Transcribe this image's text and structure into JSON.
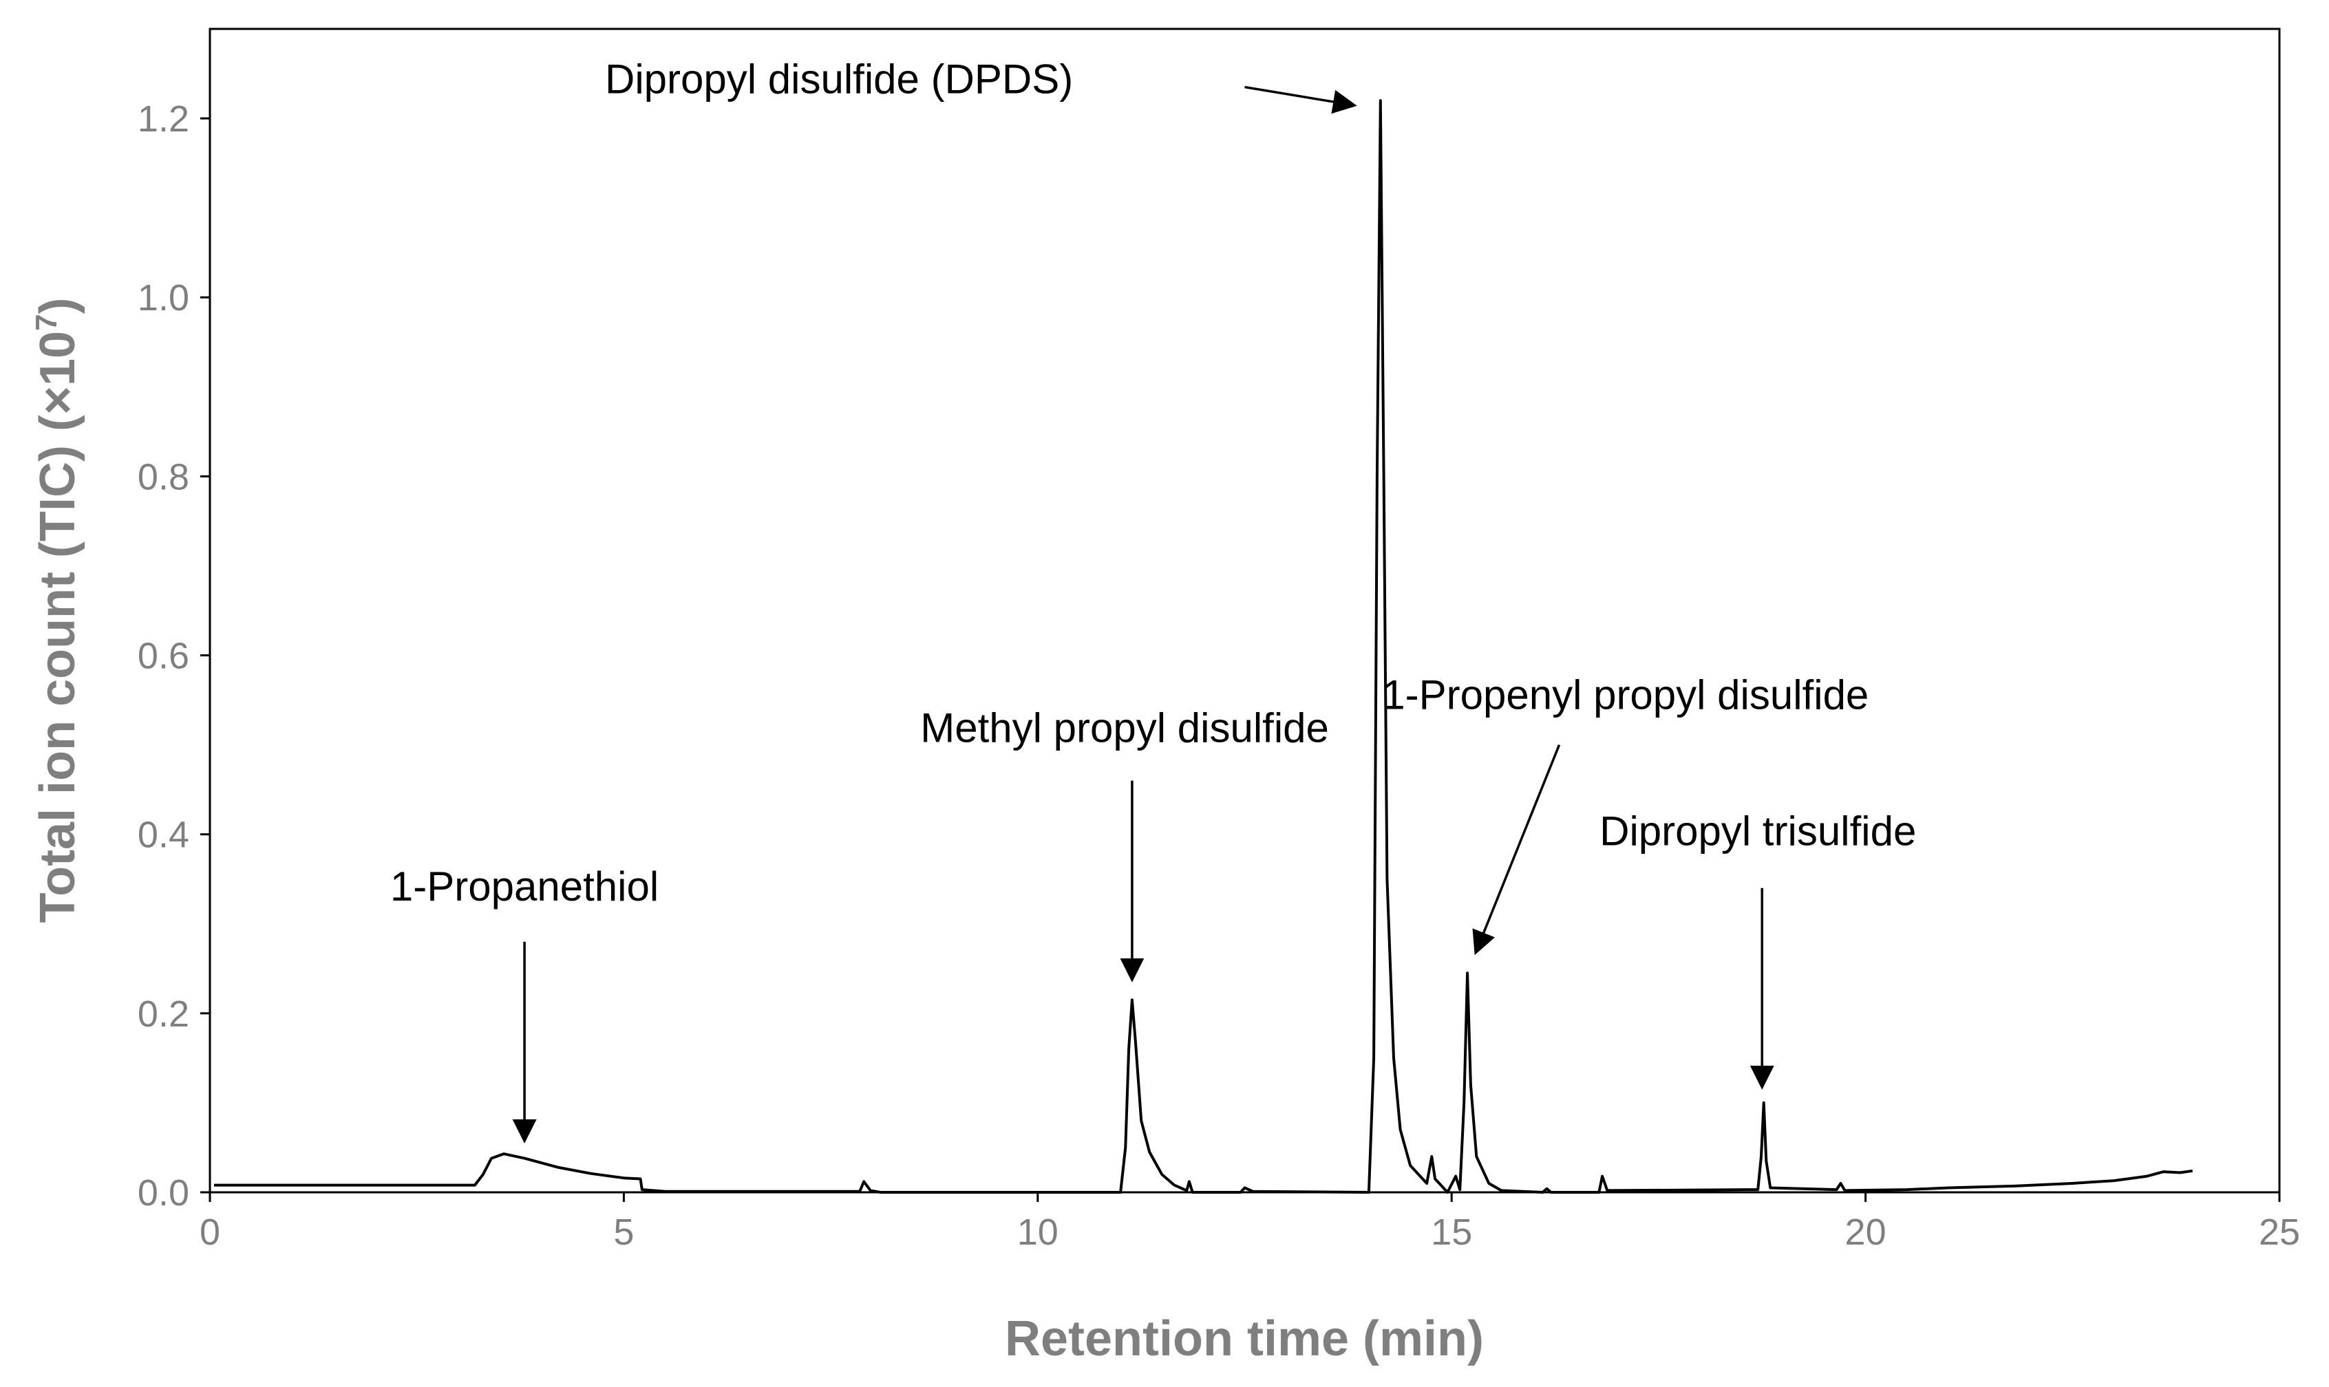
{
  "chart_data": {
    "type": "line",
    "title": "",
    "xlabel": "Retention time (min)",
    "ylabel_main": "Total ion count (TIC) (×10",
    "ylabel_sup": "7",
    "ylabel_end": ")",
    "xlim": [
      0,
      25
    ],
    "ylim": [
      0,
      1.3
    ],
    "x_ticks": [
      0,
      5,
      10,
      15,
      20,
      25
    ],
    "x_tick_labels": [
      "0",
      "5",
      "10",
      "15",
      "20",
      "25"
    ],
    "y_ticks": [
      0.0,
      0.2,
      0.4,
      0.6,
      0.8,
      1.0,
      1.2
    ],
    "y_tick_labels": [
      "0.0",
      "0.2",
      "0.4",
      "0.6",
      "0.8",
      "1.0",
      "1.2"
    ],
    "grid": false,
    "legend": "none",
    "series": [
      {
        "color": "#000000",
        "points": [
          [
            0.05,
            0.008
          ],
          [
            3.2,
            0.008
          ],
          [
            3.3,
            0.02
          ],
          [
            3.4,
            0.038
          ],
          [
            3.55,
            0.043
          ],
          [
            3.8,
            0.038
          ],
          [
            4.2,
            0.028
          ],
          [
            4.6,
            0.021
          ],
          [
            5.0,
            0.016
          ],
          [
            5.2,
            0.015
          ],
          [
            5.22,
            0.003
          ],
          [
            5.5,
            0.001
          ],
          [
            7.85,
            0.001
          ],
          [
            7.9,
            0.012
          ],
          [
            7.98,
            0.002
          ],
          [
            8.1,
            0.0
          ],
          [
            11.0,
            0.0
          ],
          [
            11.06,
            0.05
          ],
          [
            11.1,
            0.16
          ],
          [
            11.14,
            0.215
          ],
          [
            11.18,
            0.17
          ],
          [
            11.25,
            0.08
          ],
          [
            11.35,
            0.045
          ],
          [
            11.5,
            0.02
          ],
          [
            11.65,
            0.008
          ],
          [
            11.8,
            0.002
          ],
          [
            11.83,
            0.012
          ],
          [
            11.87,
            0.0
          ],
          [
            12.45,
            0.0
          ],
          [
            12.5,
            0.005
          ],
          [
            12.6,
            0.001
          ],
          [
            14.0,
            0.0
          ],
          [
            14.06,
            0.15
          ],
          [
            14.1,
            0.8
          ],
          [
            14.14,
            1.22
          ],
          [
            14.18,
            0.8
          ],
          [
            14.22,
            0.35
          ],
          [
            14.3,
            0.15
          ],
          [
            14.38,
            0.07
          ],
          [
            14.5,
            0.03
          ],
          [
            14.7,
            0.01
          ],
          [
            14.76,
            0.04
          ],
          [
            14.8,
            0.015
          ],
          [
            14.85,
            0.01
          ],
          [
            14.95,
            0.0
          ],
          [
            15.05,
            0.018
          ],
          [
            15.1,
            0.003
          ],
          [
            15.15,
            0.1
          ],
          [
            15.19,
            0.245
          ],
          [
            15.23,
            0.12
          ],
          [
            15.3,
            0.04
          ],
          [
            15.45,
            0.01
          ],
          [
            15.6,
            0.002
          ],
          [
            16.1,
            0.0
          ],
          [
            16.15,
            0.004
          ],
          [
            16.2,
            0.0
          ],
          [
            16.78,
            0.0
          ],
          [
            16.82,
            0.018
          ],
          [
            16.88,
            0.002
          ],
          [
            18.7,
            0.003
          ],
          [
            18.74,
            0.04
          ],
          [
            18.77,
            0.1
          ],
          [
            18.8,
            0.035
          ],
          [
            18.85,
            0.005
          ],
          [
            19.65,
            0.003
          ],
          [
            19.7,
            0.01
          ],
          [
            19.75,
            0.002
          ],
          [
            20.5,
            0.003
          ],
          [
            21.0,
            0.005
          ],
          [
            21.8,
            0.007
          ],
          [
            22.5,
            0.01
          ],
          [
            23.0,
            0.013
          ],
          [
            23.4,
            0.018
          ],
          [
            23.6,
            0.023
          ],
          [
            23.8,
            0.022
          ],
          [
            23.95,
            0.024
          ]
        ]
      }
    ],
    "annotations": [
      {
        "text": "1-Propanethiol",
        "label_x": 3.8,
        "label_y": 0.326,
        "arrow_from": [
          3.8,
          0.28
        ],
        "arrow_to": [
          3.8,
          0.06
        ]
      },
      {
        "text": "Methyl propyl disulfide",
        "label_x": 11.05,
        "label_y": 0.503,
        "arrow_from": [
          11.14,
          0.46
        ],
        "arrow_to": [
          11.14,
          0.24
        ]
      },
      {
        "text": "Dipropyl disulfide (DPDS)",
        "label_x": 7.6,
        "label_y": 1.228,
        "arrow_from": [
          12.5,
          1.235
        ],
        "arrow_to": [
          13.8,
          1.215
        ]
      },
      {
        "text": "1-Propenyl propyl disulfide",
        "label_x": 17.1,
        "label_y": 0.54,
        "arrow_from": [
          16.3,
          0.5
        ],
        "arrow_to": [
          15.3,
          0.27
        ]
      },
      {
        "text": "Dipropyl trisulfide",
        "label_x": 18.7,
        "label_y": 0.388,
        "arrow_from": [
          18.75,
          0.34
        ],
        "arrow_to": [
          18.75,
          0.12
        ]
      }
    ]
  }
}
